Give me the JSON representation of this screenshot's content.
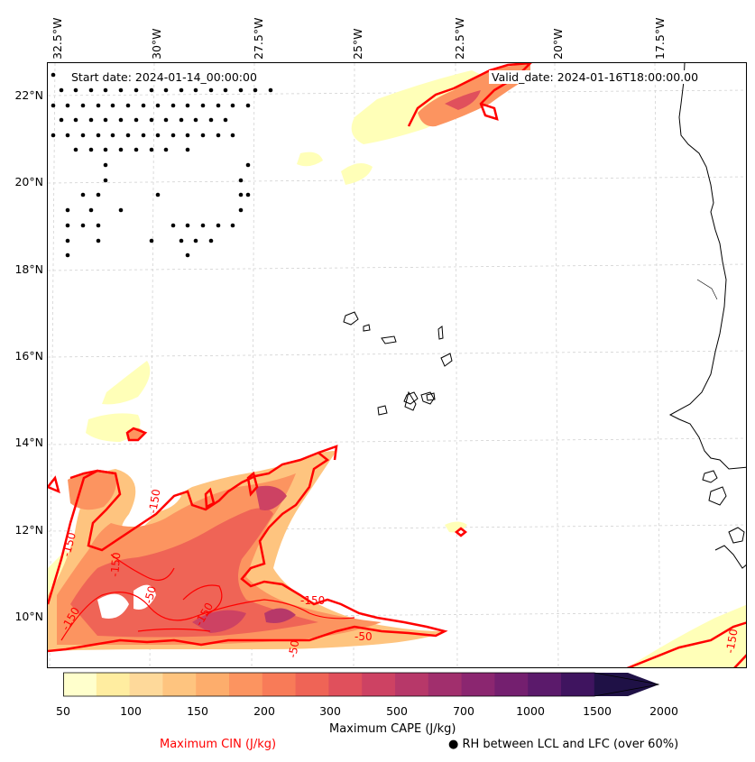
{
  "axes": {
    "top_ticks": [
      "32.5°W",
      "30°W",
      "27.5°W",
      "25°W",
      "22.5°W",
      "20°W",
      "17.5°W"
    ],
    "left_ticks": [
      "22°N",
      "20°N",
      "18°N",
      "16°N",
      "14°N",
      "12°N",
      "10°N"
    ]
  },
  "header": {
    "start": "Start date: 2024-01-14_00:00:00",
    "valid": "Valid_date: 2024-01-16T18:00:00.00"
  },
  "cin_labels": [
    "-150",
    "-150",
    "-150",
    "-150",
    "-50",
    "-50",
    "-150",
    "-150",
    "-50",
    "-150"
  ],
  "colorbar": {
    "ticks": [
      "50",
      "100",
      "150",
      "200",
      "300",
      "500",
      "700",
      "1000",
      "1500",
      "2000"
    ],
    "colors": [
      "#ffffcc",
      "#ffeda0",
      "#fed99a",
      "#fec47f",
      "#fdad6c",
      "#fc9460",
      "#f87b58",
      "#ef6456",
      "#e0505c",
      "#cd4263",
      "#b73869",
      "#a12f6d",
      "#8b2670",
      "#741f6f",
      "#5b1a6b",
      "#3f145f",
      "#1f1146"
    ],
    "cape_title": "Maximum CAPE (J/kg)",
    "cin_title": "Maximum CIN (J/kg)",
    "rh_title": "● RH between LCL and LFC (over 60%)"
  }
}
